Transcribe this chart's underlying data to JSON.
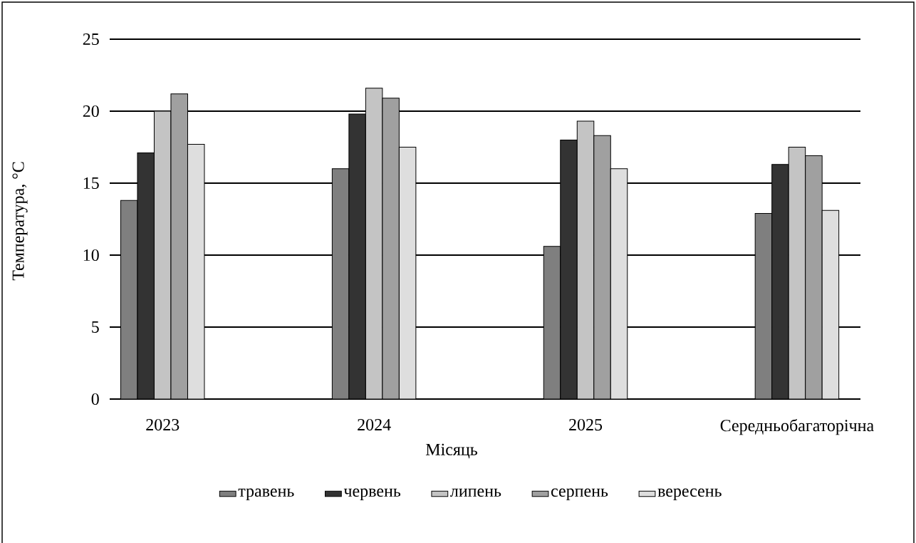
{
  "chart_data": {
    "type": "bar",
    "xlabel": "Місяць",
    "ylabel": "Температура, °C",
    "categories": [
      "2023",
      "2024",
      "2025",
      "Середньобагаторічна"
    ],
    "series": [
      {
        "name": "травень",
        "color": "#7f7f7f",
        "values": [
          13.8,
          16.0,
          10.6,
          12.9
        ]
      },
      {
        "name": "червень",
        "color": "#333333",
        "values": [
          17.1,
          19.8,
          18.0,
          16.3
        ]
      },
      {
        "name": "липень",
        "color": "#c4c4c4",
        "values": [
          20.0,
          21.6,
          19.3,
          17.5
        ]
      },
      {
        "name": "серпень",
        "color": "#a0a0a0",
        "values": [
          21.2,
          20.9,
          18.3,
          16.9
        ]
      },
      {
        "name": "вересень",
        "color": "#dedede",
        "values": [
          17.7,
          17.5,
          16.0,
          13.1
        ]
      }
    ],
    "ylim": [
      0,
      25
    ],
    "yticks": [
      0,
      5,
      10,
      15,
      20,
      25
    ],
    "grid": "y",
    "legend": "bottom"
  }
}
